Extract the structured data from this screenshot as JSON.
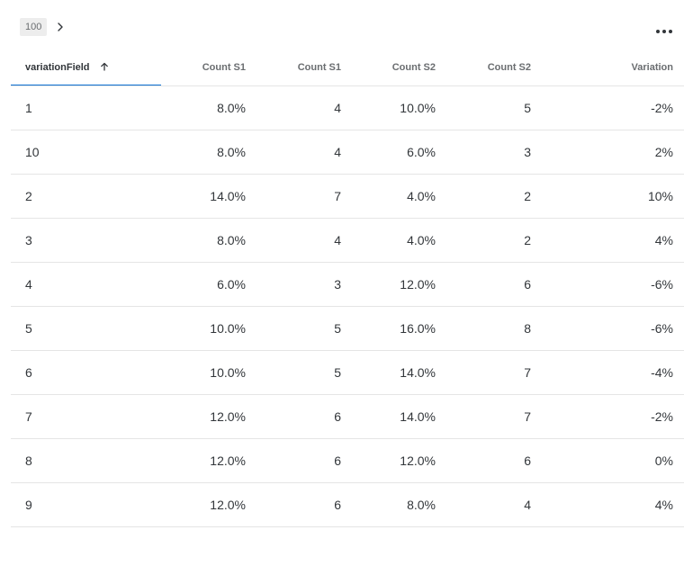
{
  "toolbar": {
    "limit_value": "100",
    "next_icon": "chevron-right-icon",
    "more_icon": "more-horizontal-icon"
  },
  "table": {
    "columns": [
      {
        "label": "variationField",
        "sort": "ascending"
      },
      {
        "label": "Count S1"
      },
      {
        "label": "Count S1"
      },
      {
        "label": "Count S2"
      },
      {
        "label": "Count S2"
      },
      {
        "label": "Variation"
      }
    ],
    "rows": [
      [
        "1",
        "8.0%",
        "4",
        "10.0%",
        "5",
        "-2%"
      ],
      [
        "10",
        "8.0%",
        "4",
        "6.0%",
        "3",
        "2%"
      ],
      [
        "2",
        "14.0%",
        "7",
        "4.0%",
        "2",
        "10%"
      ],
      [
        "3",
        "8.0%",
        "4",
        "4.0%",
        "2",
        "4%"
      ],
      [
        "4",
        "6.0%",
        "3",
        "12.0%",
        "6",
        "-6%"
      ],
      [
        "5",
        "10.0%",
        "5",
        "16.0%",
        "8",
        "-6%"
      ],
      [
        "6",
        "10.0%",
        "5",
        "14.0%",
        "7",
        "-4%"
      ],
      [
        "7",
        "12.0%",
        "6",
        "14.0%",
        "7",
        "-2%"
      ],
      [
        "8",
        "12.0%",
        "6",
        "12.0%",
        "6",
        "0%"
      ],
      [
        "9",
        "12.0%",
        "6",
        "8.0%",
        "4",
        "4%"
      ]
    ]
  },
  "colors": {
    "text": "#32363a",
    "header_text": "#6a6d70",
    "border": "#e5e5e5",
    "active_underline": "#0a6ed1",
    "badge_bg": "#ededed"
  }
}
